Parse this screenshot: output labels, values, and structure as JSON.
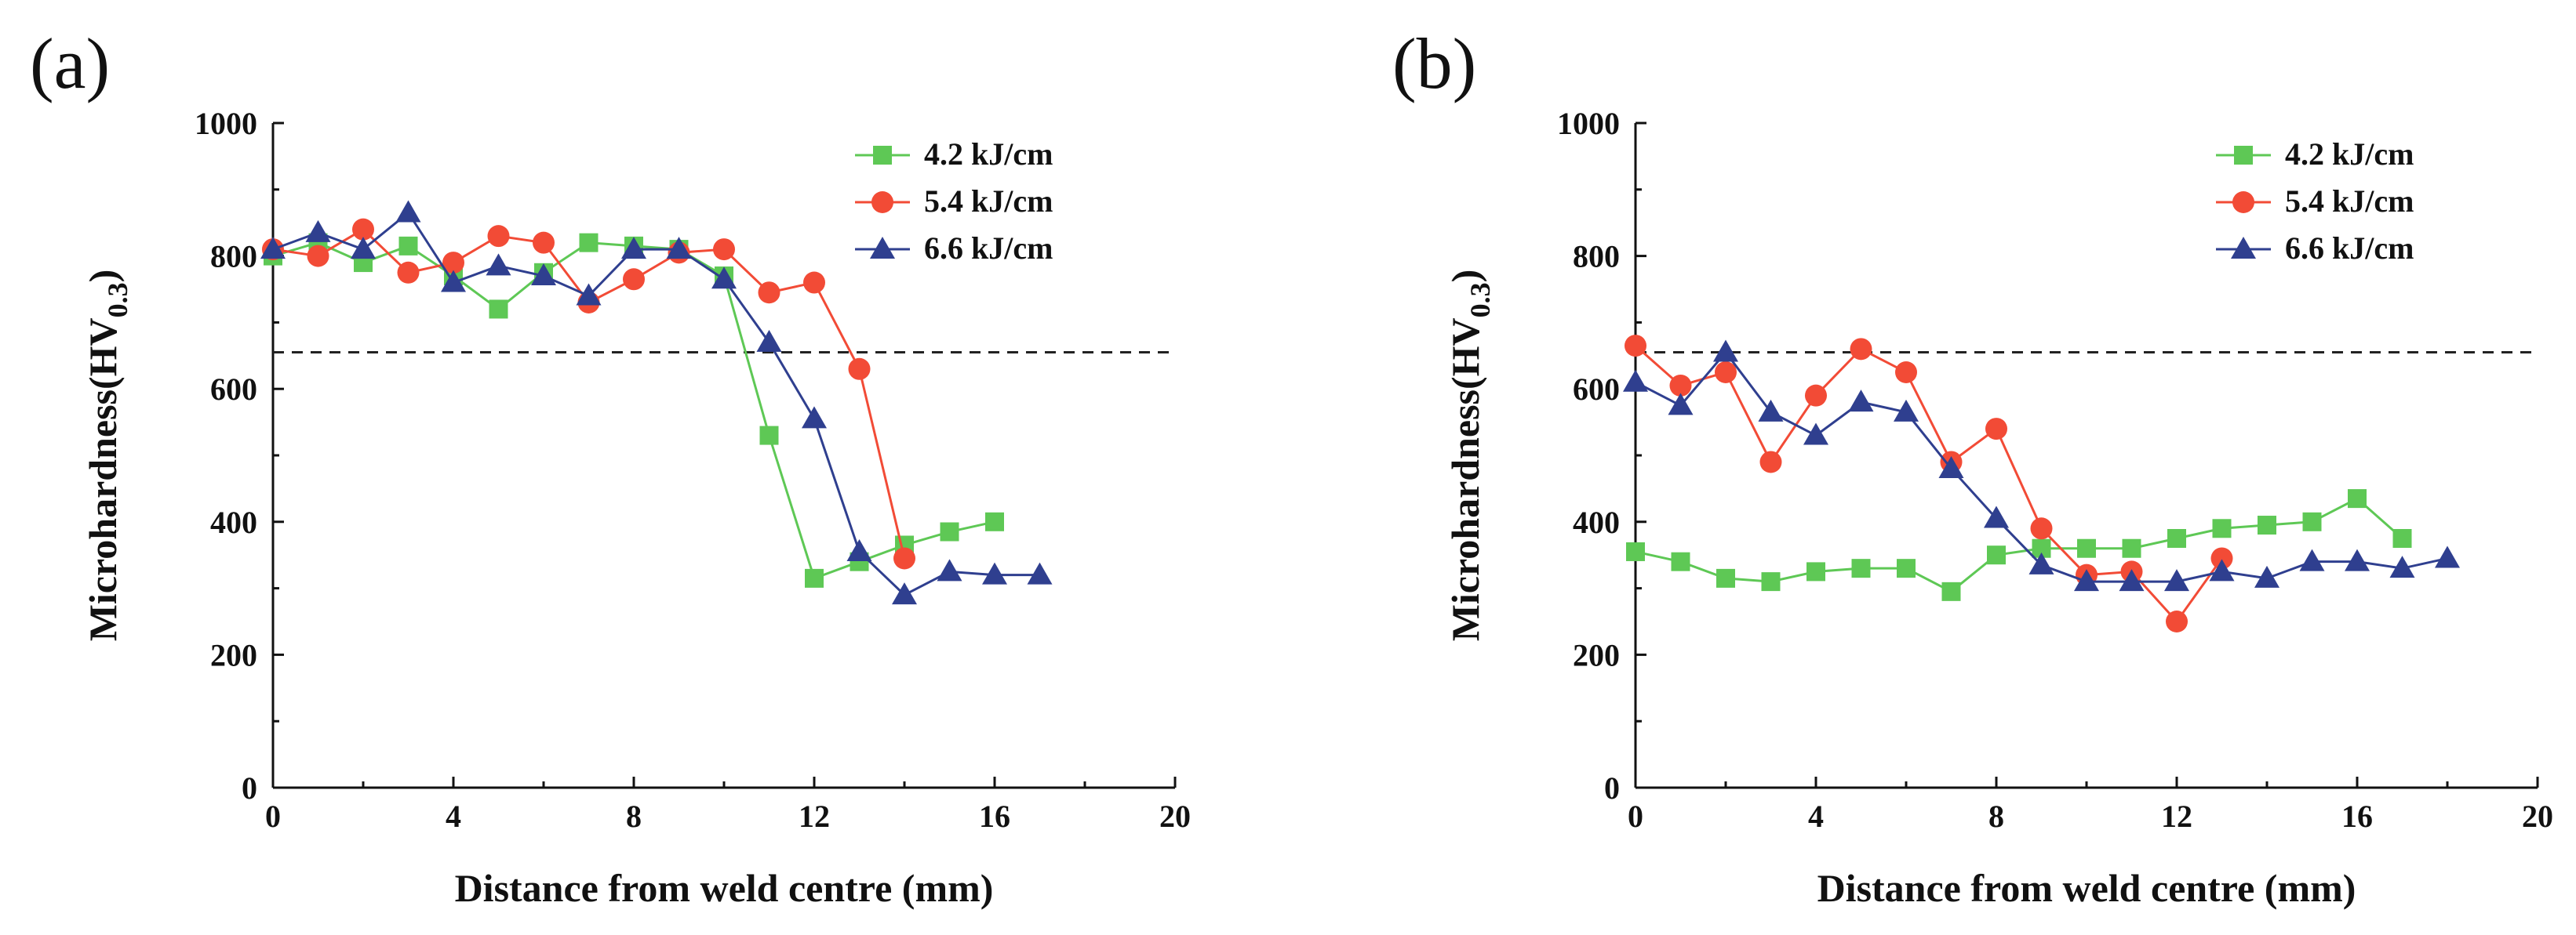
{
  "chart_data": [
    {
      "type": "line",
      "panel_label": "(a)",
      "xlabel": "Distance from weld centre (mm)",
      "ylabel": "Microhardness(HV",
      "ylabel_sub": "0.3",
      "ylabel_close": ")",
      "xlim": [
        0,
        20
      ],
      "ylim": [
        0,
        1000
      ],
      "xticks": [
        0,
        4,
        8,
        12,
        16,
        20
      ],
      "yticks": [
        0,
        200,
        400,
        600,
        800,
        1000
      ],
      "reference_line": 655,
      "legend_position": "top-right",
      "series": [
        {
          "name": "4.2 kJ/cm",
          "color": "#5ec855",
          "marker": "square",
          "x": [
            0,
            1,
            2,
            3,
            4,
            5,
            6,
            7,
            8,
            9,
            10,
            11,
            12,
            13,
            14,
            15,
            16
          ],
          "y": [
            800,
            820,
            790,
            815,
            770,
            720,
            775,
            820,
            815,
            810,
            770,
            530,
            315,
            340,
            365,
            385,
            400
          ]
        },
        {
          "name": "5.4 kJ/cm",
          "color": "#f24b36",
          "marker": "circle",
          "x": [
            0,
            1,
            2,
            3,
            4,
            5,
            6,
            7,
            8,
            9,
            10,
            11,
            12,
            13,
            14
          ],
          "y": [
            810,
            800,
            840,
            775,
            790,
            830,
            820,
            730,
            765,
            805,
            810,
            745,
            760,
            630,
            345
          ]
        },
        {
          "name": "6.6 kJ/cm",
          "color": "#2f3f8f",
          "marker": "triangle",
          "x": [
            0,
            1,
            2,
            3,
            4,
            5,
            6,
            7,
            8,
            9,
            10,
            11,
            12,
            13,
            14,
            15,
            16,
            17
          ],
          "y": [
            810,
            835,
            810,
            865,
            760,
            785,
            770,
            740,
            810,
            810,
            765,
            670,
            555,
            355,
            290,
            325,
            320,
            320
          ]
        }
      ]
    },
    {
      "type": "line",
      "panel_label": "(b)",
      "xlabel": "Distance from weld centre (mm)",
      "ylabel": "Microhardness(HV",
      "ylabel_sub": "0.3",
      "ylabel_close": ")",
      "xlim": [
        0,
        20
      ],
      "ylim": [
        0,
        1000
      ],
      "xticks": [
        0,
        4,
        8,
        12,
        16,
        20
      ],
      "yticks": [
        0,
        200,
        400,
        600,
        800,
        1000
      ],
      "reference_line": 655,
      "legend_position": "top-right",
      "series": [
        {
          "name": "4.2 kJ/cm",
          "color": "#5ec855",
          "marker": "square",
          "x": [
            0,
            1,
            2,
            3,
            4,
            5,
            6,
            7,
            8,
            9,
            10,
            11,
            12,
            13,
            14,
            15,
            16,
            17
          ],
          "y": [
            355,
            340,
            315,
            310,
            325,
            330,
            330,
            295,
            350,
            360,
            360,
            360,
            375,
            390,
            395,
            400,
            435,
            375
          ]
        },
        {
          "name": "5.4 kJ/cm",
          "color": "#f24b36",
          "marker": "circle",
          "x": [
            0,
            1,
            2,
            3,
            4,
            5,
            6,
            7,
            8,
            9,
            10,
            11,
            12,
            13
          ],
          "y": [
            665,
            605,
            625,
            490,
            590,
            660,
            625,
            490,
            540,
            390,
            320,
            325,
            250,
            345
          ]
        },
        {
          "name": "6.6 kJ/cm",
          "color": "#2f3f8f",
          "marker": "triangle",
          "x": [
            0,
            1,
            2,
            3,
            4,
            5,
            6,
            7,
            8,
            9,
            10,
            11,
            12,
            13,
            14,
            15,
            16,
            17,
            18
          ],
          "y": [
            610,
            575,
            655,
            565,
            530,
            580,
            565,
            480,
            405,
            335,
            310,
            310,
            310,
            325,
            315,
            340,
            340,
            330,
            345
          ]
        }
      ]
    }
  ]
}
